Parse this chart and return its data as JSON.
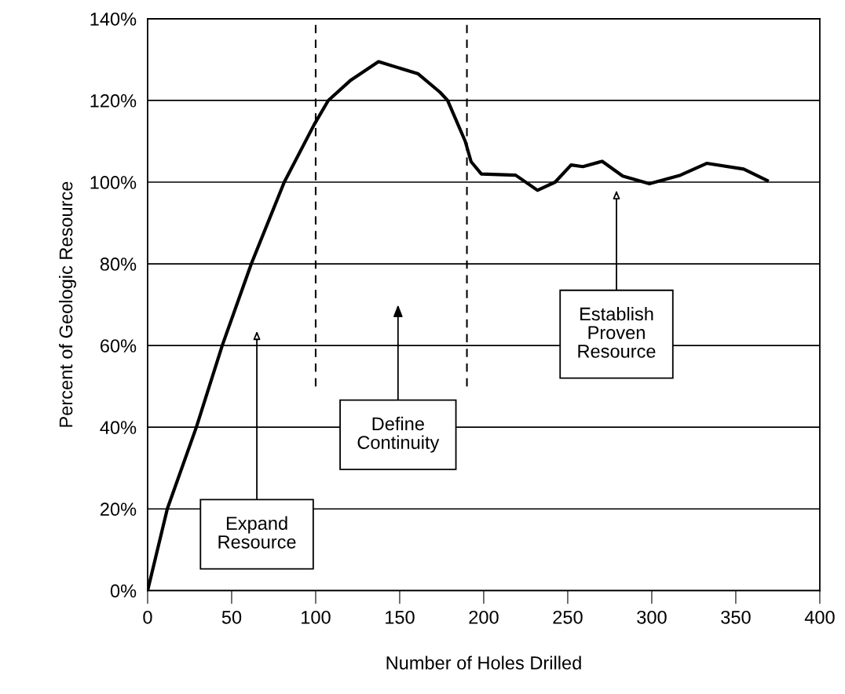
{
  "chart_data": {
    "type": "line",
    "xlabel": "Number of Holes Drilled",
    "ylabel": "Percent of Geologic Resource",
    "series": [
      {
        "color": "#000000",
        "line_style": "solid",
        "x": [
          0,
          11.7,
          29,
          44.4,
          61.7,
          81.3,
          99,
          107.5,
          121,
          137.4,
          161,
          174,
          178.5,
          189,
          192.5,
          198.6,
          219,
          232,
          242.5,
          252,
          259,
          270.5,
          282.7,
          298.6,
          317,
          332.7,
          354.7,
          368.7
        ],
        "values": [
          0,
          20,
          40,
          60,
          80,
          100,
          114,
          120,
          125,
          129.5,
          126.5,
          122,
          120,
          110,
          105,
          102,
          101.7,
          98,
          100,
          104.2,
          103.8,
          105.1,
          101.5,
          99.6,
          101.7,
          104.6,
          103.2,
          100.4
        ]
      },
      {
        "color": "#000000",
        "line_style": "dashed",
        "x": [
          100,
          100
        ],
        "values": [
          50,
          140
        ]
      },
      {
        "color": "#000000",
        "line_style": "dashed",
        "x": [
          190,
          190
        ],
        "values": [
          50,
          140
        ]
      }
    ],
    "xlim": [
      0,
      400
    ],
    "xticks": [
      0,
      50,
      100,
      150,
      200,
      250,
      300,
      350,
      400
    ],
    "ylim": [
      0,
      140
    ],
    "yticks": [
      {
        "value": 0,
        "label": "0%"
      },
      {
        "value": 20,
        "label": "20%"
      },
      {
        "value": 40,
        "label": "40%"
      },
      {
        "value": 60,
        "label": "60%"
      },
      {
        "value": 80,
        "label": "80%"
      },
      {
        "value": 100,
        "label": "100%"
      },
      {
        "value": 120,
        "label": "120%"
      },
      {
        "value": 140,
        "label": "140%"
      }
    ],
    "grid": "y",
    "annotations": [
      "Expand\nResource",
      "Define\nContinuity",
      "Establish\nProven\nResource"
    ]
  }
}
